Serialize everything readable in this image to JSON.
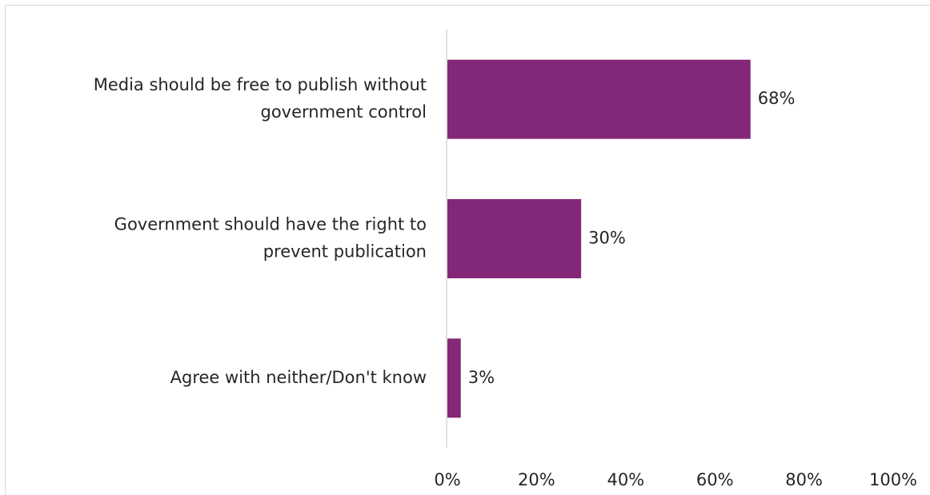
{
  "chart_data": {
    "type": "bar",
    "orientation": "horizontal",
    "categories": [
      "Media should be free to publish without government control",
      "Government should have the right to prevent publication",
      "Agree with neither/Don't know"
    ],
    "category_lines": [
      [
        "Media should be free to publish without",
        "government control"
      ],
      [
        "Government should have the right to",
        "prevent publication"
      ],
      [
        "Agree with neither/Don't know"
      ]
    ],
    "values": [
      68,
      30,
      3
    ],
    "data_labels": [
      "68%",
      "30%",
      "3%"
    ],
    "unit": "%",
    "xlim": [
      0,
      100
    ],
    "x_ticks": [
      0,
      20,
      40,
      60,
      80,
      100
    ],
    "x_tick_labels": [
      "0%",
      "20%",
      "40%",
      "60%",
      "80%",
      "100%"
    ],
    "grid": false,
    "legend": "none",
    "title": "",
    "xlabel": "",
    "ylabel": "",
    "bar_color": "#832878",
    "axis_color": "#d9d9d9",
    "text_color": "#262626"
  }
}
